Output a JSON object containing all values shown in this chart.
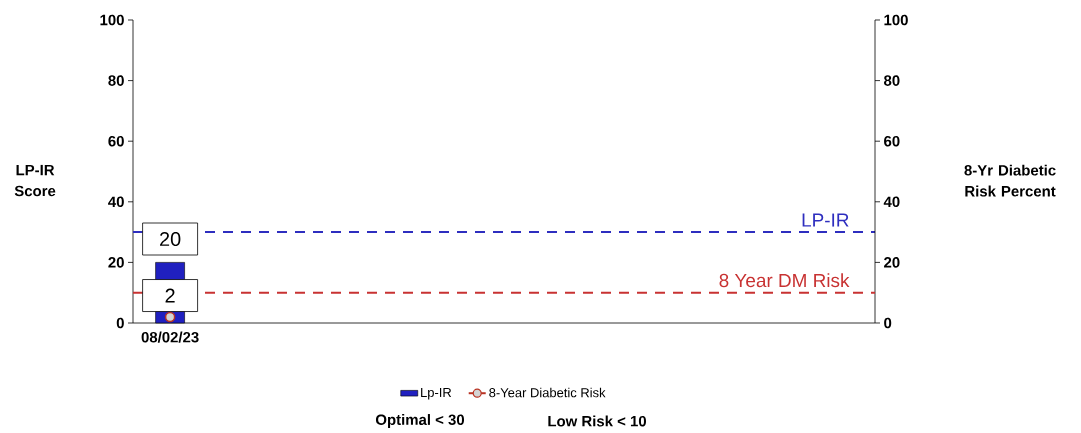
{
  "chart_data": {
    "type": "bar",
    "ylabel": "LP-IR Score",
    "y2label": "8-Yr Diabetic Risk Percent",
    "categories": [
      "08/02/23",
      null,
      null,
      null,
      null,
      null,
      null,
      null,
      null,
      null
    ],
    "series": [
      {
        "name": "Lp-IR",
        "type": "bar",
        "color": "#2020c0",
        "values": [
          20,
          null,
          null,
          null,
          null,
          null,
          null,
          null,
          null,
          null
        ]
      },
      {
        "name": "8-Year Diabetic Risk",
        "type": "line",
        "axis": "y2",
        "color": "#b83222",
        "values": [
          2,
          null,
          null,
          null,
          null,
          null,
          null,
          null,
          null,
          null
        ]
      }
    ],
    "ylim": [
      0,
      100
    ],
    "yticks": [
      0,
      20,
      40,
      60,
      80,
      100
    ],
    "y2lim": [
      0,
      100
    ],
    "y2ticks": [
      0,
      20,
      40,
      60,
      80,
      100
    ],
    "ref_lines": [
      {
        "axis": "y",
        "value": 30,
        "label": "LP-IR",
        "color": "#2e2ebf",
        "line_style": "dashed"
      },
      {
        "axis": "y2",
        "value": 10,
        "label": "8 Year DM Risk",
        "color": "#c83232",
        "line_style": "dashed"
      }
    ],
    "marker": "circle",
    "data_labels": true,
    "legend": "bottom",
    "annotations": [
      "Optimal < 30",
      "Low Risk < 10"
    ]
  }
}
